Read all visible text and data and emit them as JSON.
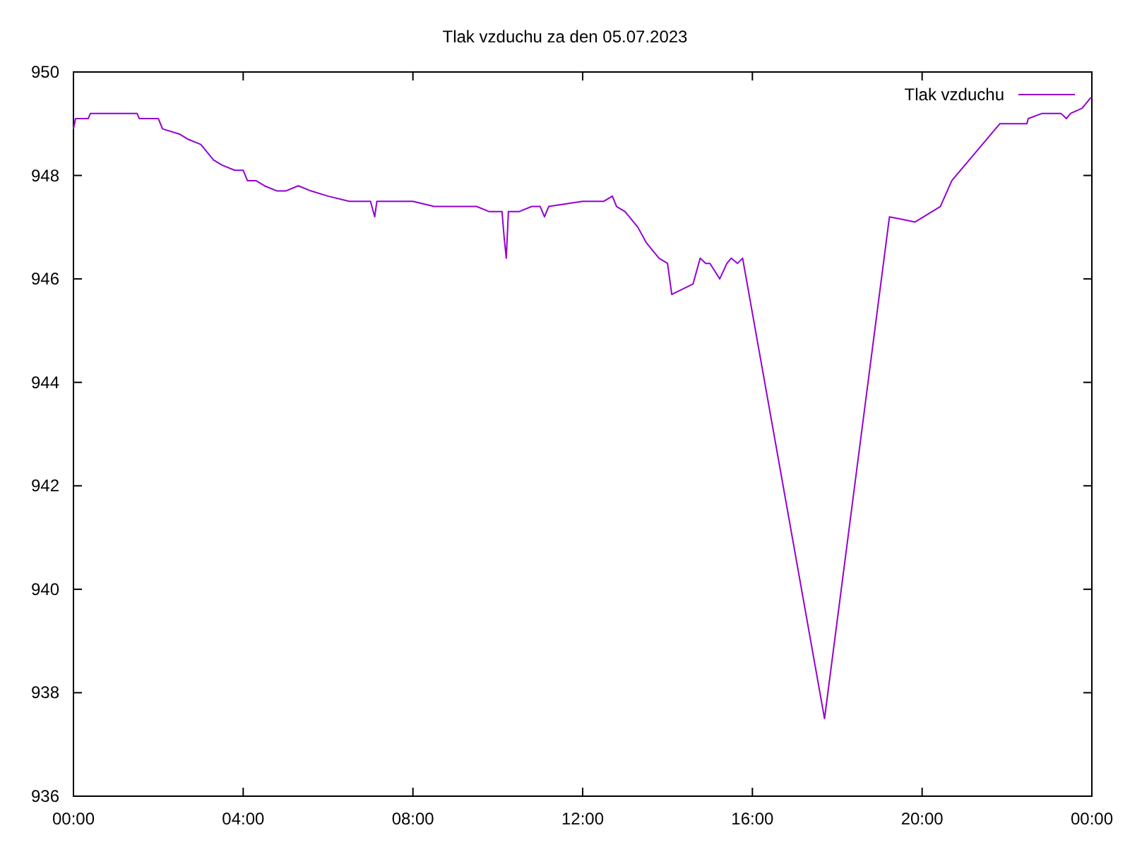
{
  "chart_data": {
    "type": "line",
    "title": "Tlak vzduchu za den 05.07.2023",
    "x": [
      0,
      0.05,
      0.35,
      0.4,
      1.5,
      1.55,
      2.0,
      2.1,
      2.5,
      2.7,
      3.0,
      3.1,
      3.3,
      3.5,
      3.8,
      4.0,
      4.1,
      4.3,
      4.5,
      4.8,
      5.0,
      5.3,
      5.6,
      6.0,
      6.5,
      7.0,
      7.1,
      7.15,
      7.5,
      8.0,
      8.5,
      9.0,
      9.5,
      9.8,
      10.1,
      10.15,
      10.2,
      10.25,
      10.5,
      10.8,
      11.0,
      11.1,
      11.2,
      12.0,
      12.5,
      12.7,
      12.8,
      13.0,
      13.3,
      13.5,
      13.8,
      14.0,
      14.1,
      14.6,
      14.77,
      14.9,
      15.0,
      15.23,
      15.4,
      15.5,
      15.65,
      15.77,
      17.7,
      19.23,
      19.83,
      20.43,
      20.7,
      21.83,
      22.47,
      22.5,
      22.83,
      23.27,
      23.4,
      23.5,
      23.77,
      23.97,
      24.0
    ],
    "series": [
      {
        "name": "Tlak vzduchu",
        "color": "#9400d3",
        "values": [
          948.9,
          949.1,
          949.1,
          949.2,
          949.2,
          949.1,
          949.1,
          948.9,
          948.8,
          948.7,
          948.6,
          948.5,
          948.3,
          948.2,
          948.1,
          948.1,
          947.9,
          947.9,
          947.8,
          947.7,
          947.7,
          947.8,
          947.7,
          947.6,
          947.5,
          947.5,
          947.2,
          947.5,
          947.5,
          947.5,
          947.4,
          947.4,
          947.4,
          947.3,
          947.3,
          946.8,
          946.4,
          947.3,
          947.3,
          947.4,
          947.4,
          947.2,
          947.4,
          947.5,
          947.5,
          947.6,
          947.4,
          947.3,
          947.0,
          946.7,
          946.4,
          946.3,
          945.7,
          945.9,
          946.4,
          946.3,
          946.3,
          946.0,
          946.3,
          946.4,
          946.3,
          946.4,
          937.5,
          947.2,
          947.1,
          947.4,
          947.9,
          949.0,
          949.0,
          949.1,
          949.2,
          949.2,
          949.1,
          949.2,
          949.3,
          949.5,
          949.5
        ]
      }
    ],
    "xlim": [
      0,
      24
    ],
    "xticks": [
      {
        "value": 0,
        "label": "00:00"
      },
      {
        "value": 4,
        "label": "04:00"
      },
      {
        "value": 8,
        "label": "08:00"
      },
      {
        "value": 12,
        "label": "12:00"
      },
      {
        "value": 16,
        "label": "16:00"
      },
      {
        "value": 20,
        "label": "20:00"
      },
      {
        "value": 24,
        "label": "00:00"
      }
    ],
    "ylim": [
      936,
      950
    ],
    "yticks": [
      936,
      938,
      940,
      942,
      944,
      946,
      948,
      950
    ],
    "legend": "top right",
    "grid": false
  }
}
